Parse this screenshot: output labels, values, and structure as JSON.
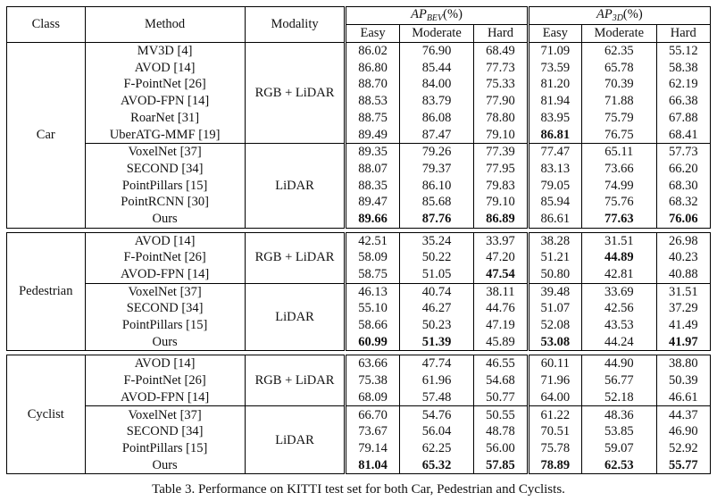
{
  "header": {
    "class": "Class",
    "method": "Method",
    "modality": "Modality",
    "ap_bev": "AP",
    "ap_bev_sub": "BEV",
    "ap_bev_unit": "(%)",
    "ap_3d": "AP",
    "ap_3d_sub": "3D",
    "ap_3d_unit": "(%)",
    "easy": "Easy",
    "moderate": "Moderate",
    "hard": "Hard"
  },
  "groups": [
    {
      "class": "Car",
      "subgroups": [
        {
          "modality": "RGB + LiDAR",
          "rows": [
            {
              "method": "MV3D [4]",
              "bev": [
                "86.02",
                "76.90",
                "68.49"
              ],
              "d3": [
                "71.09",
                "62.35",
                "55.12"
              ],
              "bold": []
            },
            {
              "method": "AVOD [14]",
              "bev": [
                "86.80",
                "85.44",
                "77.73"
              ],
              "d3": [
                "73.59",
                "65.78",
                "58.38"
              ],
              "bold": []
            },
            {
              "method": "F-PointNet [26]",
              "bev": [
                "88.70",
                "84.00",
                "75.33"
              ],
              "d3": [
                "81.20",
                "70.39",
                "62.19"
              ],
              "bold": []
            },
            {
              "method": "AVOD-FPN [14]",
              "bev": [
                "88.53",
                "83.79",
                "77.90"
              ],
              "d3": [
                "81.94",
                "71.88",
                "66.38"
              ],
              "bold": []
            },
            {
              "method": "RoarNet [31]",
              "bev": [
                "88.75",
                "86.08",
                "78.80"
              ],
              "d3": [
                "83.95",
                "75.79",
                "67.88"
              ],
              "bold": []
            },
            {
              "method": "UberATG-MMF [19]",
              "bev": [
                "89.49",
                "87.47",
                "79.10"
              ],
              "d3": [
                "86.81",
                "76.75",
                "68.41"
              ],
              "bold": [
                3
              ]
            }
          ]
        },
        {
          "modality": "LiDAR",
          "rows": [
            {
              "method": "VoxelNet [37]",
              "bev": [
                "89.35",
                "79.26",
                "77.39"
              ],
              "d3": [
                "77.47",
                "65.11",
                "57.73"
              ],
              "bold": []
            },
            {
              "method": "SECOND [34]",
              "bev": [
                "88.07",
                "79.37",
                "77.95"
              ],
              "d3": [
                "83.13",
                "73.66",
                "66.20"
              ],
              "bold": []
            },
            {
              "method": "PointPillars [15]",
              "bev": [
                "88.35",
                "86.10",
                "79.83"
              ],
              "d3": [
                "79.05",
                "74.99",
                "68.30"
              ],
              "bold": []
            },
            {
              "method": "PointRCNN [30]",
              "bev": [
                "89.47",
                "85.68",
                "79.10"
              ],
              "d3": [
                "85.94",
                "75.76",
                "68.32"
              ],
              "bold": []
            },
            {
              "method": "Ours",
              "bev": [
                "89.66",
                "87.76",
                "86.89"
              ],
              "d3": [
                "86.61",
                "77.63",
                "76.06"
              ],
              "bold": [
                0,
                1,
                2,
                4,
                5
              ]
            }
          ]
        }
      ]
    },
    {
      "class": "Pedestrian",
      "subgroups": [
        {
          "modality": "RGB + LiDAR",
          "rows": [
            {
              "method": "AVOD [14]",
              "bev": [
                "42.51",
                "35.24",
                "33.97"
              ],
              "d3": [
                "38.28",
                "31.51",
                "26.98"
              ],
              "bold": []
            },
            {
              "method": "F-PointNet [26]",
              "bev": [
                "58.09",
                "50.22",
                "47.20"
              ],
              "d3": [
                "51.21",
                "44.89",
                "40.23"
              ],
              "bold": [
                4
              ]
            },
            {
              "method": "AVOD-FPN [14]",
              "bev": [
                "58.75",
                "51.05",
                "47.54"
              ],
              "d3": [
                "50.80",
                "42.81",
                "40.88"
              ],
              "bold": [
                2
              ]
            }
          ]
        },
        {
          "modality": "LiDAR",
          "rows": [
            {
              "method": "VoxelNet [37]",
              "bev": [
                "46.13",
                "40.74",
                "38.11"
              ],
              "d3": [
                "39.48",
                "33.69",
                "31.51"
              ],
              "bold": []
            },
            {
              "method": "SECOND [34]",
              "bev": [
                "55.10",
                "46.27",
                "44.76"
              ],
              "d3": [
                "51.07",
                "42.56",
                "37.29"
              ],
              "bold": []
            },
            {
              "method": "PointPillars [15]",
              "bev": [
                "58.66",
                "50.23",
                "47.19"
              ],
              "d3": [
                "52.08",
                "43.53",
                "41.49"
              ],
              "bold": []
            },
            {
              "method": "Ours",
              "bev": [
                "60.99",
                "51.39",
                "45.89"
              ],
              "d3": [
                "53.08",
                "44.24",
                "41.97"
              ],
              "bold": [
                0,
                1,
                3,
                5
              ]
            }
          ]
        }
      ]
    },
    {
      "class": "Cyclist",
      "subgroups": [
        {
          "modality": "RGB + LiDAR",
          "rows": [
            {
              "method": "AVOD [14]",
              "bev": [
                "63.66",
                "47.74",
                "46.55"
              ],
              "d3": [
                "60.11",
                "44.90",
                "38.80"
              ],
              "bold": []
            },
            {
              "method": "F-PointNet [26]",
              "bev": [
                "75.38",
                "61.96",
                "54.68"
              ],
              "d3": [
                "71.96",
                "56.77",
                "50.39"
              ],
              "bold": []
            },
            {
              "method": "AVOD-FPN [14]",
              "bev": [
                "68.09",
                "57.48",
                "50.77"
              ],
              "d3": [
                "64.00",
                "52.18",
                "46.61"
              ],
              "bold": []
            }
          ]
        },
        {
          "modality": "LiDAR",
          "rows": [
            {
              "method": "VoxelNet [37]",
              "bev": [
                "66.70",
                "54.76",
                "50.55"
              ],
              "d3": [
                "61.22",
                "48.36",
                "44.37"
              ],
              "bold": []
            },
            {
              "method": "SECOND [34]",
              "bev": [
                "73.67",
                "56.04",
                "48.78"
              ],
              "d3": [
                "70.51",
                "53.85",
                "46.90"
              ],
              "bold": []
            },
            {
              "method": "PointPillars [15]",
              "bev": [
                "79.14",
                "62.25",
                "56.00"
              ],
              "d3": [
                "75.78",
                "59.07",
                "52.92"
              ],
              "bold": []
            },
            {
              "method": "Ours",
              "bev": [
                "81.04",
                "65.32",
                "57.85"
              ],
              "d3": [
                "78.89",
                "62.53",
                "55.77"
              ],
              "bold": [
                0,
                1,
                2,
                3,
                4,
                5
              ]
            }
          ]
        }
      ]
    }
  ],
  "caption": "Table 3. Performance on KITTI test set for both Car, Pedestrian and Cyclists."
}
